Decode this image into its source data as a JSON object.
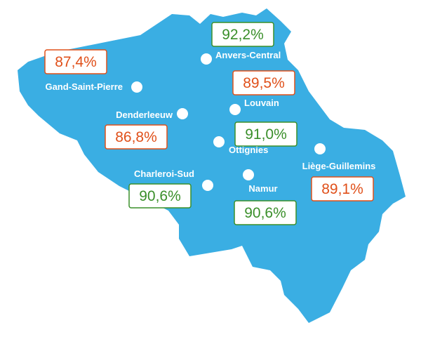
{
  "colors": {
    "land": "#3aaee3",
    "good": "#3a8f2a",
    "warn": "#e0501a",
    "box_bg": "#ffffff",
    "marker": "#ffffff"
  },
  "stations": [
    {
      "id": "anvers",
      "name": "Anvers-Central",
      "value": "92,2%",
      "status": "good"
    },
    {
      "id": "gand",
      "name": "Gand-Saint-Pierre",
      "value": "87,4%",
      "status": "warn"
    },
    {
      "id": "bruxelles",
      "name": "",
      "value": "89,5%",
      "status": "warn"
    },
    {
      "id": "louvain",
      "name": "Louvain",
      "value": "",
      "status": ""
    },
    {
      "id": "denderleeuw",
      "name": "Denderleeuw",
      "value": "86,8%",
      "status": "warn"
    },
    {
      "id": "ottignies",
      "name": "Ottignies",
      "value": "91,0%",
      "status": "good"
    },
    {
      "id": "liege",
      "name": "Liège-Guillemins",
      "value": "89,1%",
      "status": "warn"
    },
    {
      "id": "charleroi",
      "name": "Charleroi-Sud",
      "value": "90,6%",
      "status": "good"
    },
    {
      "id": "namur",
      "name": "Namur",
      "value": "90,6%",
      "status": "good"
    }
  ]
}
